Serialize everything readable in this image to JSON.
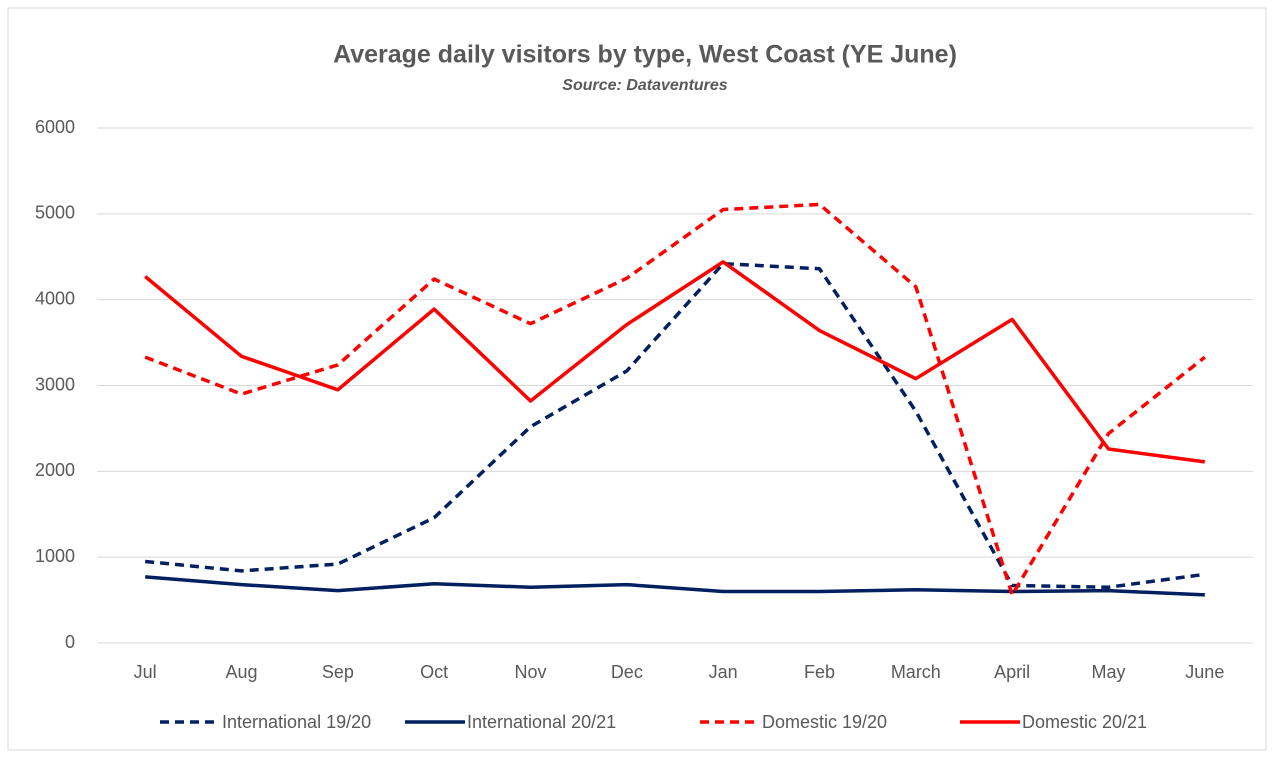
{
  "chart_data": {
    "type": "line",
    "title": "Average daily visitors by type, West Coast (YE June)",
    "subtitle": "Source: Dataventures",
    "categories": [
      "Jul",
      "Aug",
      "Sep",
      "Oct",
      "Nov",
      "Dec",
      "Jan",
      "Feb",
      "March",
      "April",
      "May",
      "June"
    ],
    "series": [
      {
        "name": "International 19/20",
        "color": "#002060",
        "line_style": "dashed",
        "values": [
          950,
          840,
          920,
          1460,
          2520,
          3170,
          4420,
          4360,
          2700,
          670,
          650,
          800
        ]
      },
      {
        "name": "International 20/21",
        "color": "#002060",
        "line_style": "solid",
        "values": [
          770,
          680,
          610,
          690,
          650,
          680,
          600,
          600,
          620,
          600,
          610,
          560
        ]
      },
      {
        "name": "Domestic 19/20",
        "color": "#ff0000",
        "line_style": "dashed",
        "values": [
          3330,
          2900,
          3240,
          4240,
          3720,
          4250,
          5050,
          5110,
          4150,
          560,
          2440,
          3330
        ]
      },
      {
        "name": "Domestic 20/21",
        "color": "#ff0000",
        "line_style": "solid",
        "values": [
          4270,
          3340,
          2950,
          3890,
          2820,
          3710,
          4440,
          3640,
          3080,
          3770,
          2260,
          2110
        ]
      }
    ],
    "ylim": [
      0,
      6000
    ],
    "yticks": [
      0,
      1000,
      2000,
      3000,
      4000,
      5000,
      6000
    ],
    "grid": true,
    "legend": "bottom"
  }
}
